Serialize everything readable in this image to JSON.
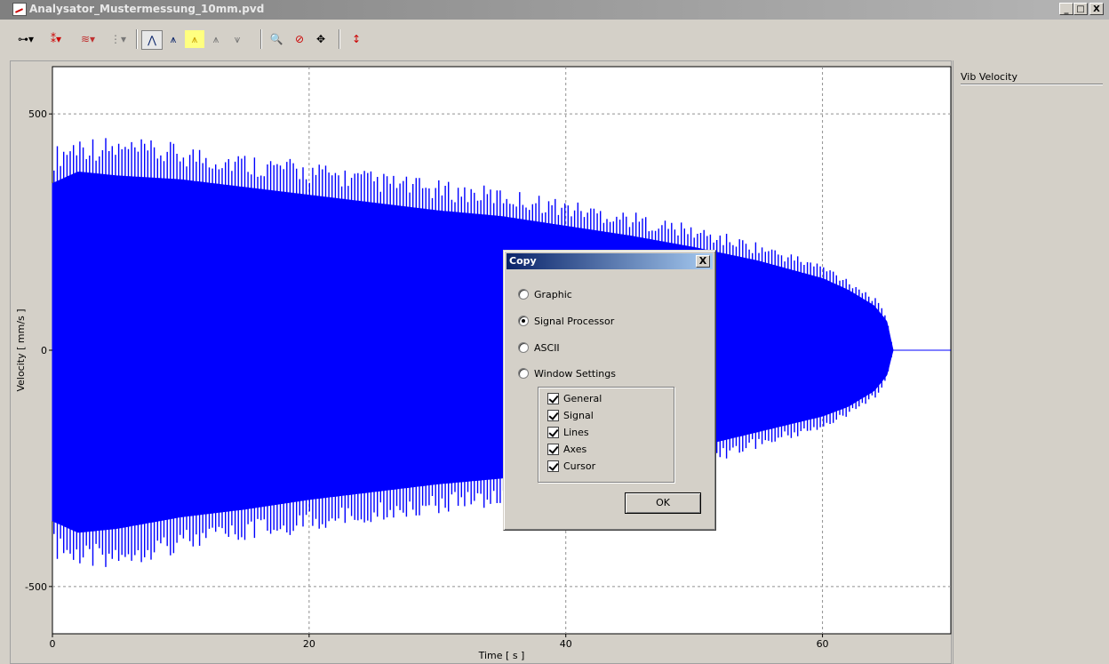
{
  "window": {
    "title": "Analysator_Mustermessung_10mm.pvd",
    "buttons": {
      "minimize": "_",
      "maximize": "□",
      "close": "X"
    }
  },
  "toolbar": {
    "items": [
      {
        "icon": "cursor-line-icon",
        "glyph": "⊶▾"
      },
      {
        "icon": "marker-points-icon",
        "glyph": "⁑▾"
      },
      {
        "icon": "signal-wave-icon",
        "glyph": "≋▾"
      },
      {
        "icon": "signal-select-icon",
        "glyph": "⋮▾"
      },
      {
        "icon": "peak-cursor-icon",
        "glyph": "⋀"
      },
      {
        "icon": "peak-pair-icon",
        "glyph": "⩚"
      },
      {
        "icon": "peak-highlight-icon",
        "glyph": "⩚"
      },
      {
        "icon": "peak-multi-icon",
        "glyph": "⩚"
      },
      {
        "icon": "peak-fit-icon",
        "glyph": "⩛"
      },
      {
        "icon": "zoom-in-icon",
        "glyph": "🔍"
      },
      {
        "icon": "zoom-reset-icon",
        "glyph": "⊘"
      },
      {
        "icon": "pan-icon",
        "glyph": "✥"
      },
      {
        "icon": "scale-icon",
        "glyph": "↕"
      }
    ]
  },
  "side_panel": {
    "legend": "Vib Velocity"
  },
  "chart_data": {
    "type": "line",
    "xlabel": "Time [ s ]",
    "ylabel": "Velocity [ mm/s ]",
    "xlim": [
      0,
      70
    ],
    "ylim": [
      -600,
      600
    ],
    "x_ticks": [
      0,
      20,
      40,
      60
    ],
    "y_ticks": [
      -500,
      0,
      500
    ],
    "y_tick_labels": [
      "-500",
      "0",
      "500"
    ],
    "x_tick_labels": [
      "0",
      "20",
      "40",
      "60"
    ],
    "grid": true,
    "series": [
      {
        "color": "#0000ff",
        "signal_end_s": 65.5,
        "envelope": {
          "t": [
            0,
            2,
            5,
            10,
            15,
            20,
            25,
            30,
            35,
            40,
            45,
            50,
            55,
            60,
            62,
            64,
            65,
            65.5
          ],
          "upper": [
            430,
            460,
            450,
            440,
            420,
            400,
            380,
            360,
            345,
            320,
            295,
            265,
            230,
            185,
            155,
            115,
            75,
            0
          ],
          "lower": [
            -440,
            -470,
            -460,
            -430,
            -410,
            -385,
            -365,
            -345,
            -330,
            -300,
            -275,
            -250,
            -210,
            -170,
            -145,
            -105,
            -65,
            0
          ]
        }
      }
    ]
  },
  "dialog": {
    "title": "Copy",
    "close_label": "X",
    "options": [
      {
        "label": "Graphic",
        "checked": false
      },
      {
        "label": "Signal Processor",
        "checked": true
      },
      {
        "label": "ASCII",
        "checked": false
      },
      {
        "label": "Window Settings",
        "checked": false
      }
    ],
    "settings": [
      {
        "label": "General",
        "checked": true
      },
      {
        "label": "Signal",
        "checked": true
      },
      {
        "label": "Lines",
        "checked": true
      },
      {
        "label": "Axes",
        "checked": true
      },
      {
        "label": "Cursor",
        "checked": true
      }
    ],
    "ok_label": "OK"
  }
}
